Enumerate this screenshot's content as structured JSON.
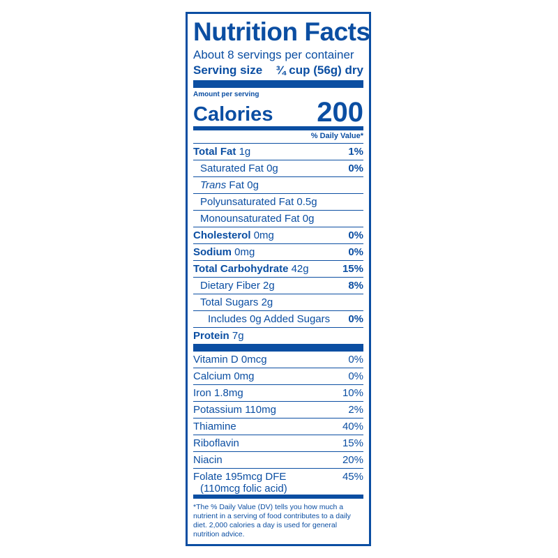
{
  "header": {
    "title": "Nutrition Facts",
    "servings_per_container": "About 8 servings per container",
    "serving_size_label": "Serving size",
    "serving_size_value": "¾ cup (56g) dry"
  },
  "calories": {
    "amount_label": "Amount per serving",
    "label": "Calories",
    "value": "200"
  },
  "daily_value_header": "% Daily Value*",
  "nutrients": [
    {
      "name": "Total Fat",
      "amount": "1g",
      "dv": "1%"
    },
    {
      "name": "Saturated Fat",
      "amount": "0g",
      "dv": "0%"
    },
    {
      "name": "Trans",
      "suffix": " Fat 0g",
      "dv": ""
    },
    {
      "label": "Polyunsaturated Fat 0.5g",
      "dv": ""
    },
    {
      "label": "Monounsaturated Fat 0g",
      "dv": ""
    },
    {
      "name": "Cholesterol",
      "amount": "0mg",
      "dv": "0%"
    },
    {
      "name": "Sodium",
      "amount": "0mg",
      "dv": "0%"
    },
    {
      "name": "Total Carbohydrate",
      "amount": "42g",
      "dv": "15%"
    },
    {
      "name": "Dietary Fiber",
      "amount": "2g",
      "dv": "8%"
    },
    {
      "name": "Total Sugars",
      "amount": "2g",
      "dv": ""
    },
    {
      "label": "Includes 0g Added Sugars",
      "dv": "0%"
    },
    {
      "name": "Protein",
      "amount": "7g",
      "dv": ""
    }
  ],
  "vitamins": [
    {
      "label": "Vitamin D 0mcg",
      "dv": "0%"
    },
    {
      "label": "Calcium 0mg",
      "dv": "0%"
    },
    {
      "label": "Iron 1.8mg",
      "dv": "10%"
    },
    {
      "label": "Potassium 110mg",
      "dv": "2%"
    },
    {
      "label": "Thiamine",
      "dv": "40%"
    },
    {
      "label": "Riboflavin",
      "dv": "15%"
    },
    {
      "label": "Niacin",
      "dv": "20%"
    },
    {
      "label": "Folate 195mcg DFE",
      "label2": "(110mcg folic acid)",
      "dv": "45%"
    }
  ],
  "footnote": "*The % Daily Value (DV) tells you how much a nutrient in a serving of food contributes to a daily diet. 2,000 calories a day is used for general nutrition advice.",
  "colors": {
    "ink": "#0b4ea2",
    "background": "#ffffff"
  }
}
